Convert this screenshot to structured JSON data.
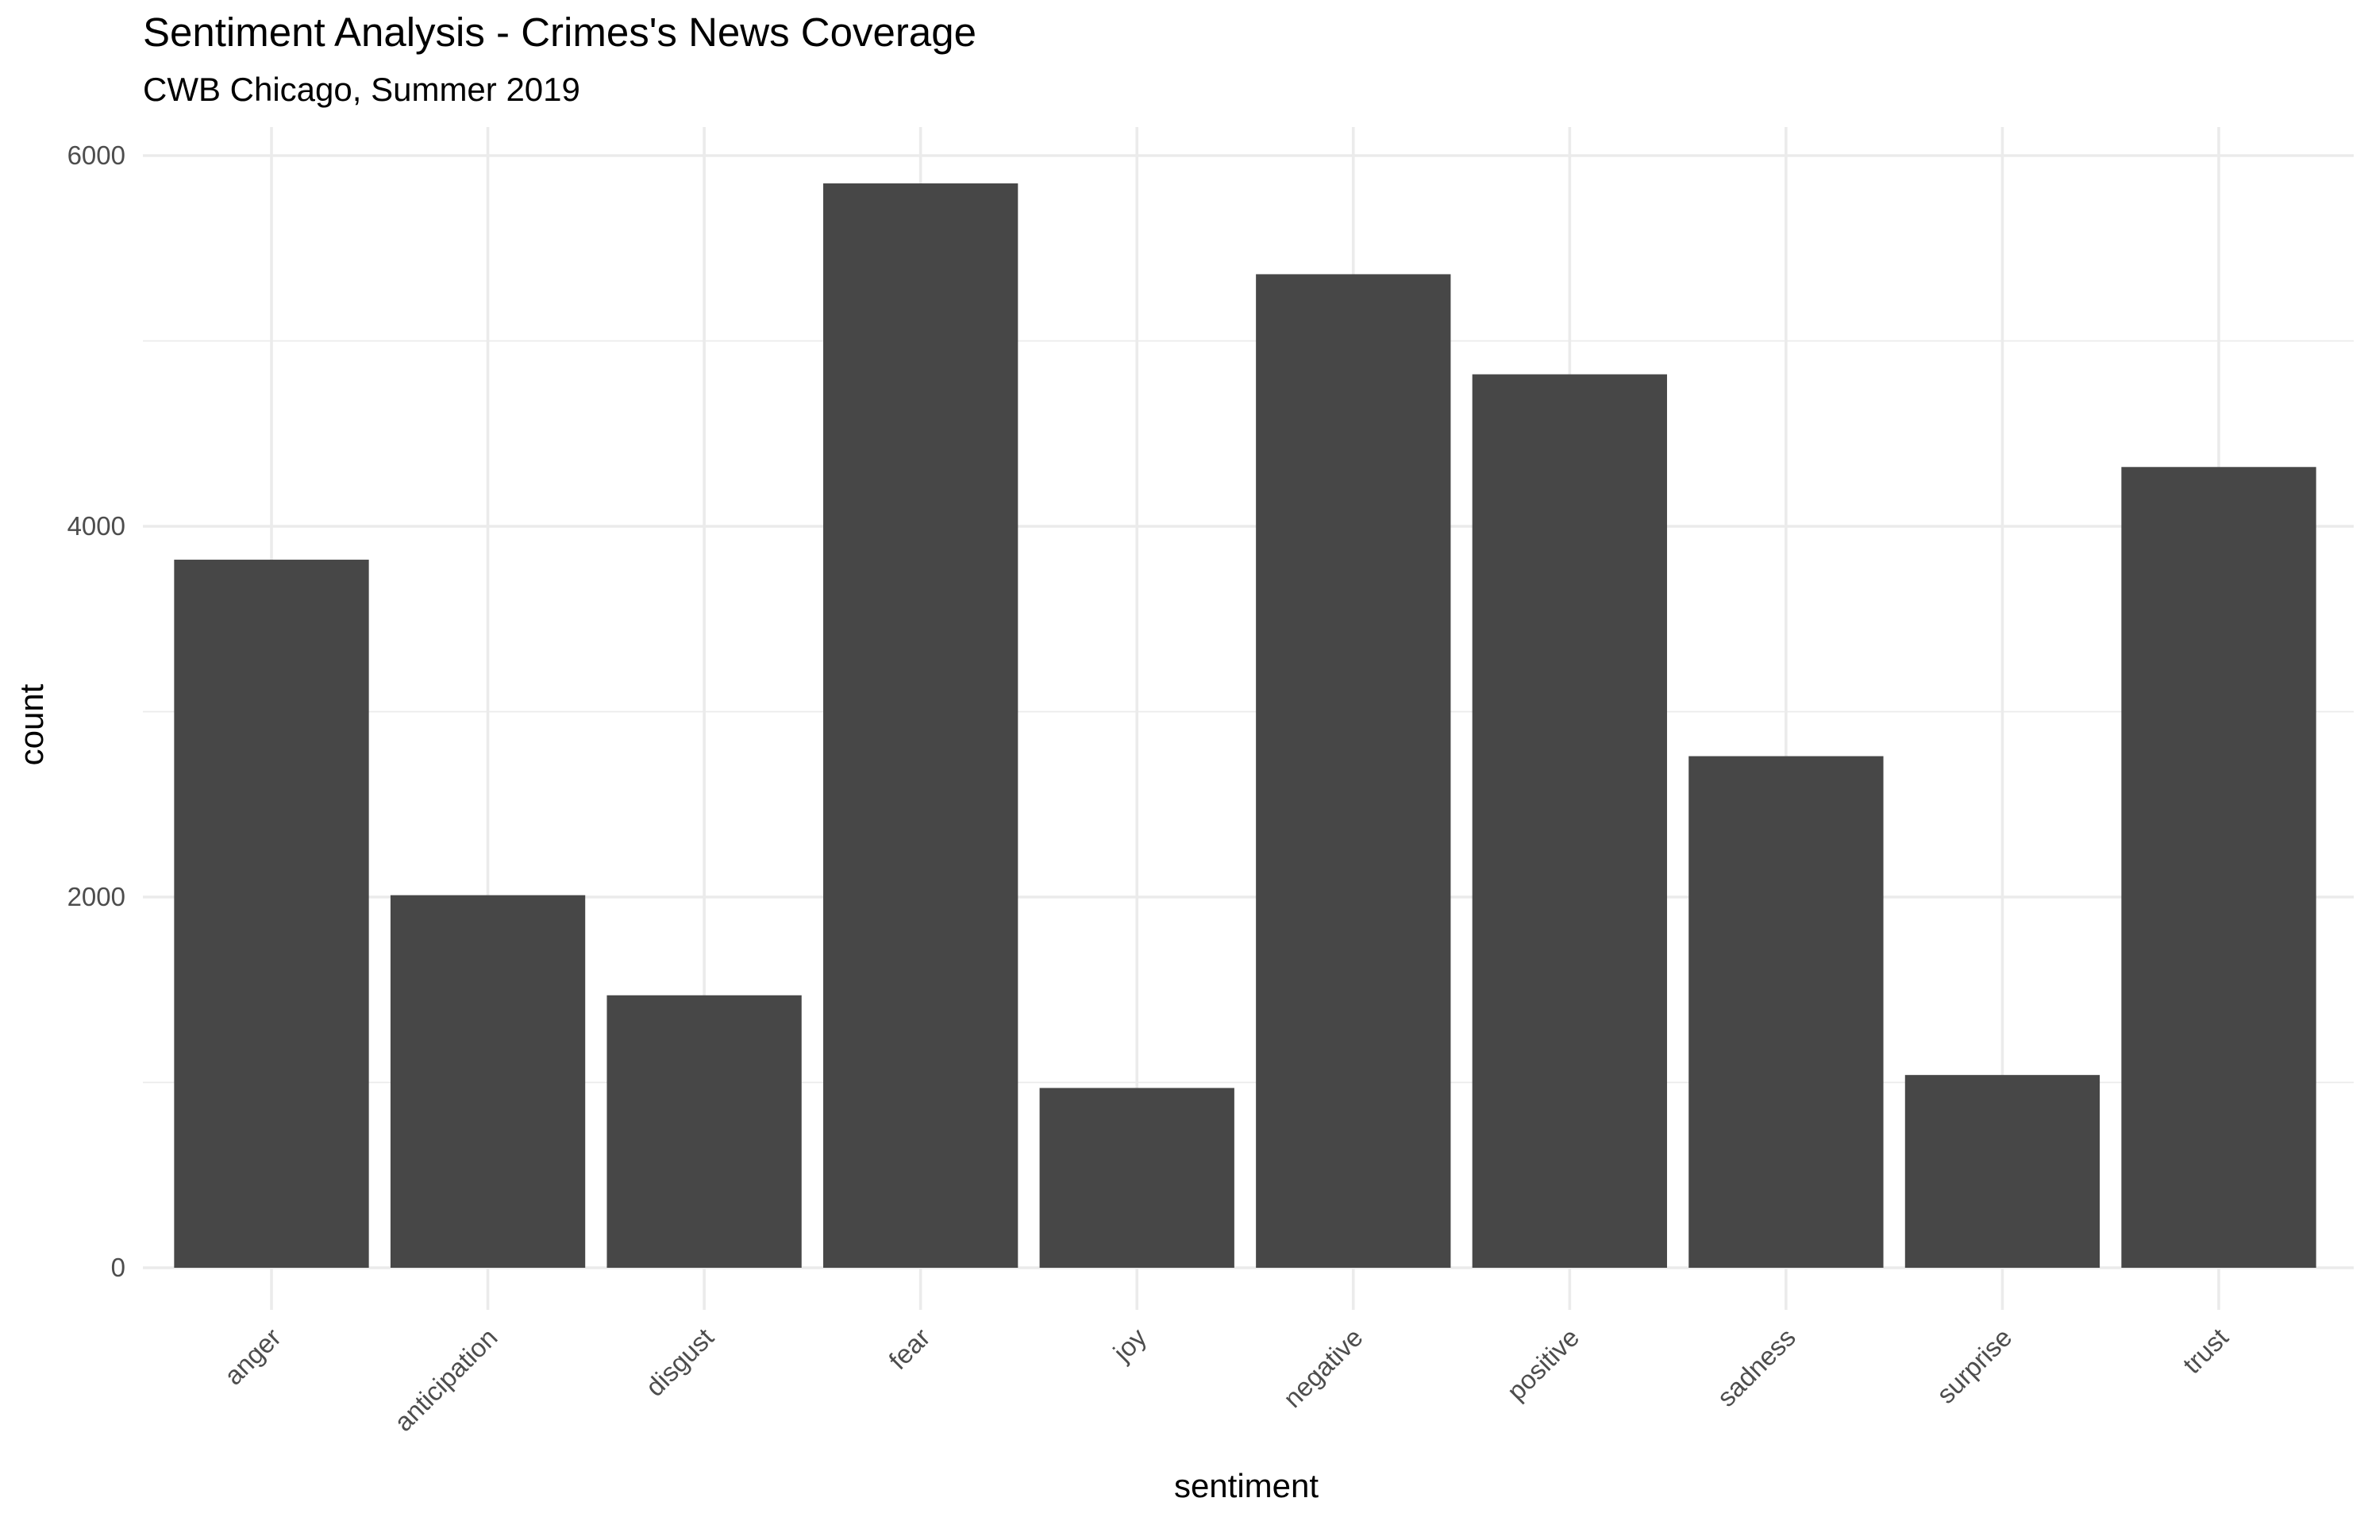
{
  "chart_data": {
    "type": "bar",
    "title": "Sentiment Analysis - Crimes's News Coverage",
    "subtitle": "CWB Chicago, Summer 2019",
    "xlabel": "sentiment",
    "ylabel": "count",
    "categories": [
      "anger",
      "anticipation",
      "disgust",
      "fear",
      "joy",
      "negative",
      "positive",
      "sadness",
      "surprise",
      "trust"
    ],
    "values": [
      3820,
      2010,
      1470,
      5850,
      970,
      5360,
      4820,
      2760,
      1040,
      4320
    ],
    "ylim": [
      0,
      6000
    ],
    "yticks": [
      "0",
      "2000",
      "4000",
      "6000"
    ],
    "grid": true,
    "bar_color": "#474747",
    "grid_color": "#ebebeb"
  }
}
